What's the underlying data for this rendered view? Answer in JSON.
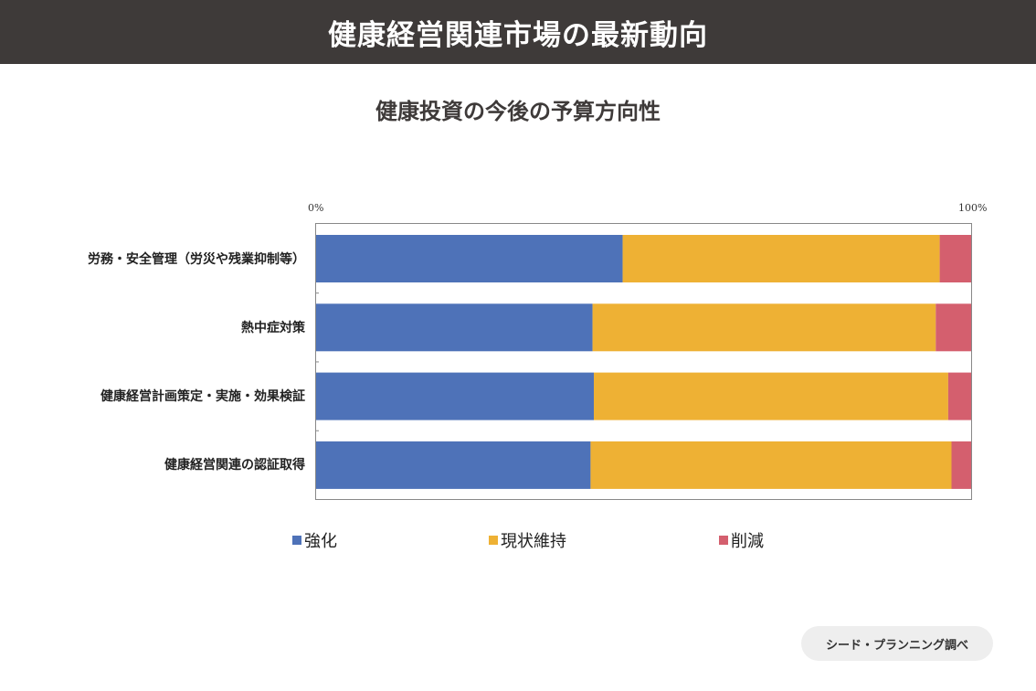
{
  "header": {
    "title": "健康経営関連市場の最新動向"
  },
  "chart_data": {
    "type": "bar",
    "orientation": "horizontal",
    "stacked": "percent",
    "title": "健康投資の今後の予算方向性",
    "categories": [
      "労務・安全管理（労災や残業抑制等）",
      "熱中症対策",
      "健康経営計画策定・実施・効果検証",
      "健康経営関連の認証取得"
    ],
    "series": [
      {
        "name": "強化",
        "color": "#4e72b8",
        "values": [
          46.8,
          42.2,
          42.4,
          41.9
        ]
      },
      {
        "name": "現状維持",
        "color": "#eeb134",
        "values": [
          48.4,
          52.4,
          54.1,
          55.1
        ]
      },
      {
        "name": "削減",
        "color": "#d45f6e",
        "values": [
          4.8,
          5.4,
          3.5,
          3.0
        ]
      }
    ],
    "x_ticks": [
      "0%",
      "100%"
    ],
    "xlim": [
      0,
      100
    ],
    "legend": "bottom",
    "grid": false
  },
  "source": {
    "label": "シード・プランニング調べ"
  }
}
